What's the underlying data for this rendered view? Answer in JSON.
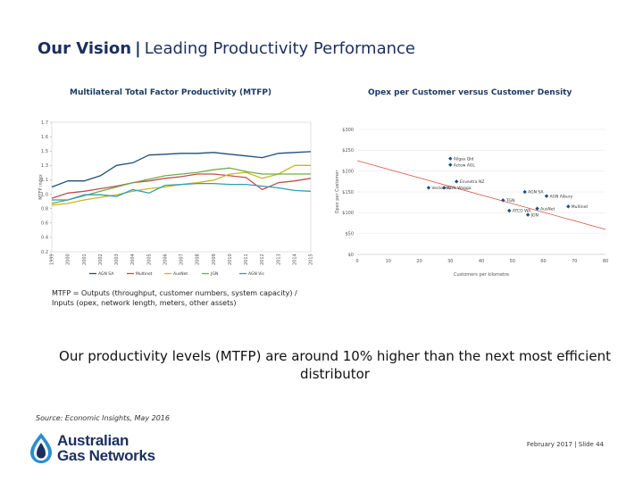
{
  "slide": {
    "title_bold": "Our Vision",
    "title_sep": "|",
    "title_rest": "Leading Productivity Performance",
    "note": "MTFP = Outputs (throughput, customer numbers, system capacity) / Inputs (opex, network length, meters, other assets)",
    "headline": "Our productivity levels (MTFP) are around 10% higher than the next most efficient distributor",
    "source": "Source: Economic Insights, May 2016",
    "footer": "February 2017 | Slide 44",
    "logo_line1": "Australian",
    "logo_line2": "Gas Networks"
  },
  "colors": {
    "title": "#1b2f5e",
    "chart_title": "#1b3b63",
    "agn_sa": "#1f4e79",
    "multinet": "#c0504d",
    "ausnet": "#c9b720",
    "jgn": "#70ad47",
    "agn_vic": "#2e9fb5",
    "scatter_point": "#1f4e79",
    "trend": "#d9534f"
  },
  "chart_data": [
    {
      "type": "line",
      "title": "Multilateral Total Factor Productivity (MTFP)",
      "ylabel": "MTFP index",
      "xlabel": "",
      "ylim": [
        0.2,
        1.7
      ],
      "yticks": [
        "0.2",
        "0.4",
        "0.6",
        "0.8",
        "1.0",
        "1.1",
        "1.3",
        "1.5",
        "1.6",
        "1.7"
      ],
      "x": [
        "1999",
        "2000",
        "2001",
        "2002",
        "2003",
        "2004",
        "2005",
        "2006",
        "2007",
        "2008",
        "2009",
        "2010",
        "2011",
        "2012",
        "2013",
        "2014",
        "2015"
      ],
      "series": [
        {
          "name": "AGN SA",
          "color": "#1f4e79",
          "values": [
            0.95,
            1.02,
            1.02,
            1.08,
            1.2,
            1.23,
            1.32,
            1.33,
            1.34,
            1.34,
            1.35,
            1.33,
            1.31,
            1.29,
            1.34,
            1.35,
            1.36
          ]
        },
        {
          "name": "Multinet",
          "color": "#c0504d",
          "values": [
            0.82,
            0.88,
            0.9,
            0.93,
            0.96,
            1.0,
            1.02,
            1.05,
            1.07,
            1.1,
            1.1,
            1.08,
            1.06,
            0.92,
            1.0,
            1.02,
            1.05
          ]
        },
        {
          "name": "AusNet",
          "color": "#c9b720",
          "values": [
            0.74,
            0.76,
            0.8,
            0.83,
            0.86,
            0.9,
            0.93,
            0.95,
            0.98,
            1.0,
            1.03,
            1.1,
            1.12,
            1.05,
            1.1,
            1.2,
            1.2
          ]
        },
        {
          "name": "JGN",
          "color": "#70ad47",
          "values": [
            0.76,
            0.8,
            0.85,
            0.9,
            0.95,
            1.0,
            1.04,
            1.08,
            1.1,
            1.12,
            1.15,
            1.17,
            1.13,
            1.1,
            1.1,
            1.1,
            1.1
          ]
        },
        {
          "name": "AGN Vic",
          "color": "#2e9fb5",
          "values": [
            0.8,
            0.8,
            0.86,
            0.86,
            0.84,
            0.92,
            0.88,
            0.97,
            0.98,
            0.99,
            0.99,
            0.98,
            0.98,
            0.96,
            0.94,
            0.91,
            0.9
          ]
        }
      ]
    },
    {
      "type": "scatter",
      "title": "Opex per Customer versus Customer Density",
      "xlabel": "Customers per kilometre",
      "ylabel": "Opex per Customer",
      "xlim": [
        0,
        80
      ],
      "ylim": [
        0,
        300
      ],
      "xticks": [
        "0",
        "10",
        "20",
        "30",
        "40",
        "50",
        "60",
        "70",
        "80"
      ],
      "yticks": [
        "$0",
        "$50",
        "$100",
        "$150",
        "$200",
        "$250",
        "$300"
      ],
      "points": [
        {
          "label": "Allgas Qld",
          "x": 30,
          "y": 230
        },
        {
          "label": "Actew AGL",
          "x": 30,
          "y": 215
        },
        {
          "label": "Envestra NZ",
          "x": 32,
          "y": 175
        },
        {
          "label": "Vector NZ",
          "x": 23,
          "y": 160
        },
        {
          "label": "AGN Wagga",
          "x": 28,
          "y": 160
        },
        {
          "label": "AGN SA",
          "x": 54,
          "y": 150
        },
        {
          "label": "AGN Albury",
          "x": 61,
          "y": 140
        },
        {
          "label": "TGN",
          "x": 47,
          "y": 130
        },
        {
          "label": "Multinet",
          "x": 68,
          "y": 115
        },
        {
          "label": "AusNet",
          "x": 58,
          "y": 110
        },
        {
          "label": "ATCO WA",
          "x": 49,
          "y": 105
        },
        {
          "label": "JGN",
          "x": 55,
          "y": 95
        }
      ],
      "trendline": {
        "x0": 0,
        "y0": 225,
        "x1": 80,
        "y1": 60
      }
    }
  ]
}
